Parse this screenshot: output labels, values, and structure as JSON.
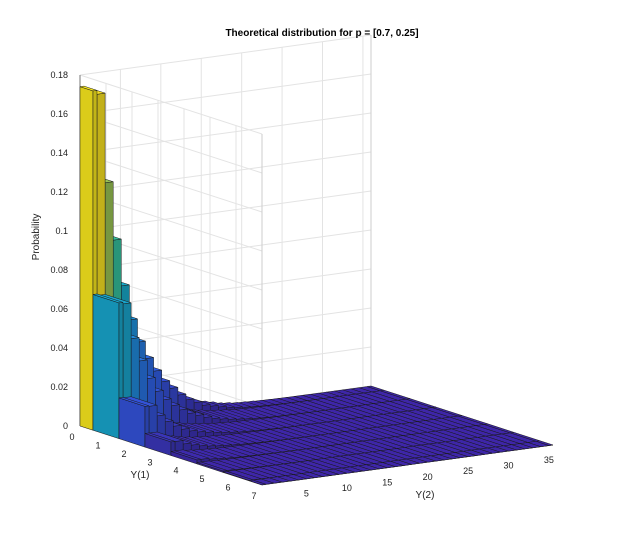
{
  "chart_data": {
    "type": "bar3d",
    "title": "Theoretical distribution for p = [0.7, 0.25]",
    "xlabel": "Y(1)",
    "ylabel": "Y(2)",
    "zlabel": "Probability",
    "xticks": [
      "0",
      "1",
      "2",
      "3",
      "4",
      "5",
      "6",
      "7"
    ],
    "yticks": [
      "5",
      "10",
      "15",
      "20",
      "25",
      "30",
      "35"
    ],
    "zticks": [
      "0",
      "0.02",
      "0.04",
      "0.06",
      "0.08",
      "0.1",
      "0.12",
      "0.14",
      "0.16",
      "0.18"
    ],
    "xlim": [
      0,
      7
    ],
    "ylim": [
      0,
      36
    ],
    "zlim": [
      0,
      0.18
    ],
    "grid": true,
    "colormap": "parula",
    "y1_values": [
      0,
      1,
      2,
      3,
      4,
      5,
      6,
      7
    ],
    "y2_values": [
      0,
      1,
      2,
      3,
      4,
      5,
      6,
      7,
      8,
      9,
      10,
      11,
      12,
      13,
      14,
      15,
      16,
      17,
      18,
      19,
      20,
      21,
      22,
      23,
      24,
      25,
      26,
      27,
      28,
      29,
      30,
      31,
      32,
      33,
      34,
      35,
      36
    ],
    "y1_zero_profile": [
      0.174,
      0.172,
      0.126,
      0.096,
      0.072,
      0.054,
      0.042,
      0.033,
      0.026,
      0.02,
      0.016,
      0.012,
      0.009,
      0.007,
      0.005,
      0.004,
      0.003,
      0.002,
      0.0015,
      0.001,
      0.0008,
      0.0006,
      0.0004,
      0.0003,
      0.0002,
      0.00015,
      0.0001,
      8e-05,
      6e-05,
      4e-05,
      3e-05,
      2e-05,
      1e-05,
      1e-05,
      0,
      0,
      0
    ],
    "y1_decay": [
      1,
      0.4,
      0.12,
      0.04,
      0.012,
      0.004,
      0.0012,
      0.0004
    ]
  }
}
